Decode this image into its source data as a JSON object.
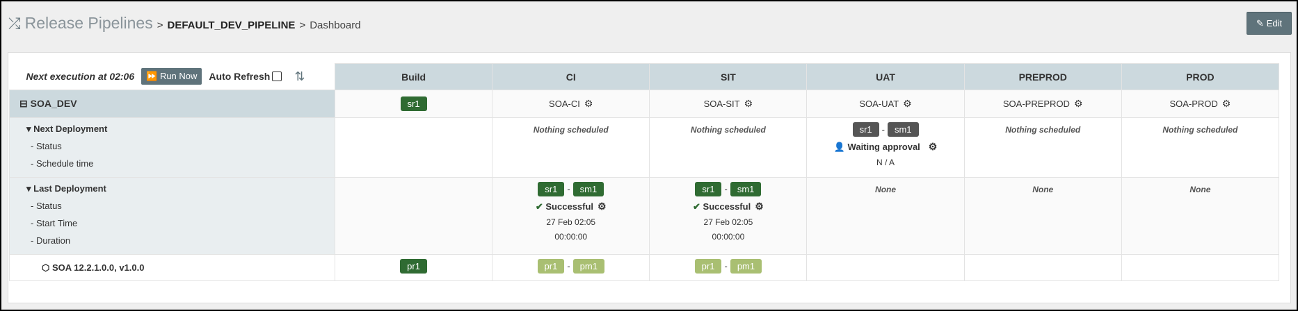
{
  "breadcrumb": {
    "icon": "shuffle-icon",
    "root": "Release Pipelines",
    "pipeline": "DEFAULT_DEV_PIPELINE",
    "page": "Dashboard",
    "separator": ">"
  },
  "edit_button": {
    "icon": "edit-icon",
    "label": "Edit"
  },
  "controls": {
    "next_execution": "Next execution at 02:06",
    "run_now": "Run Now",
    "auto_refresh": "Auto Refresh",
    "auto_refresh_checked": false
  },
  "columns": [
    "Build",
    "CI",
    "SIT",
    "UAT",
    "PREPROD",
    "PROD"
  ],
  "group": {
    "name": "SOA_DEV",
    "build_badge": "sr1",
    "environments": [
      "SOA-CI",
      "SOA-SIT",
      "SOA-UAT",
      "SOA-PREPROD",
      "SOA-PROD"
    ]
  },
  "next_deployment": {
    "label": "Next Deployment",
    "fields": [
      "- Status",
      "- Schedule time"
    ],
    "cells": {
      "ci": "Nothing scheduled",
      "sit": "Nothing scheduled",
      "uat": {
        "badges": [
          "sr1",
          "sm1"
        ],
        "status": "Waiting approval",
        "time": "N / A"
      },
      "preprod": "Nothing scheduled",
      "prod": "Nothing scheduled"
    }
  },
  "last_deployment": {
    "label": "Last Deployment",
    "fields": [
      "- Status",
      "- Start Time",
      "- Duration"
    ],
    "cells": {
      "ci": {
        "badges": [
          "sr1",
          "sm1"
        ],
        "status": "Successful",
        "start": "27 Feb 02:05",
        "duration": "00:00:00"
      },
      "sit": {
        "badges": [
          "sr1",
          "sm1"
        ],
        "status": "Successful",
        "start": "27 Feb 02:05",
        "duration": "00:00:00"
      },
      "uat": "None",
      "preprod": "None",
      "prod": "None"
    }
  },
  "product": {
    "name": "SOA 12.2.1.0.0, v1.0.0",
    "build_badge": "pr1",
    "ci": [
      "pr1",
      "pm1"
    ],
    "sit": [
      "pr1",
      "pm1"
    ]
  },
  "colors": {
    "success_green": "#2f6b32",
    "pending_gray": "#555555",
    "light_green": "#a9bf72",
    "header_blue": "#ccd9de",
    "button": "#5f737b"
  }
}
